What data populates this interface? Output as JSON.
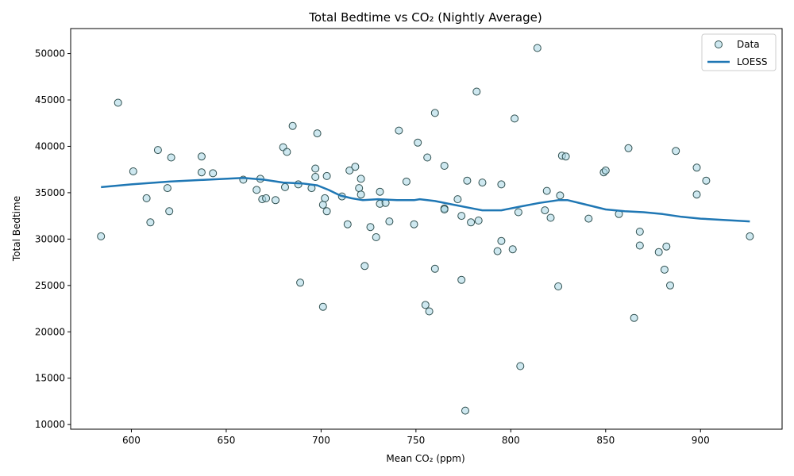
{
  "chart_data": {
    "type": "scatter",
    "title": "Total Bedtime  vs CO₂ (Nightly Average)",
    "xlabel": "Mean CO₂ (ppm)",
    "ylabel": "Total Bedtime",
    "xlim": [
      568,
      943
    ],
    "ylim": [
      9500,
      52700
    ],
    "x_ticks": [
      600,
      650,
      700,
      750,
      800,
      850,
      900
    ],
    "y_ticks": [
      10000,
      15000,
      20000,
      25000,
      30000,
      35000,
      40000,
      45000,
      50000
    ],
    "grid": false,
    "legend_position": "top-right",
    "colors": {
      "marker_fill": "#add8e6",
      "marker_edge": "#2f4f4f",
      "line": "#1f77b4"
    },
    "series": [
      {
        "name": "Data",
        "kind": "scatter",
        "points": [
          [
            584,
            30300
          ],
          [
            593,
            44700
          ],
          [
            601,
            37300
          ],
          [
            608,
            34400
          ],
          [
            610,
            31800
          ],
          [
            614,
            39600
          ],
          [
            619,
            35500
          ],
          [
            620,
            33000
          ],
          [
            621,
            38800
          ],
          [
            637,
            38900
          ],
          [
            637,
            37200
          ],
          [
            643,
            37100
          ],
          [
            659,
            36400
          ],
          [
            666,
            35300
          ],
          [
            668,
            36500
          ],
          [
            669,
            34300
          ],
          [
            671,
            34400
          ],
          [
            676,
            34200
          ],
          [
            680,
            39900
          ],
          [
            681,
            35600
          ],
          [
            682,
            39400
          ],
          [
            685,
            42200
          ],
          [
            688,
            35900
          ],
          [
            689,
            25300
          ],
          [
            695,
            35500
          ],
          [
            697,
            37600
          ],
          [
            697,
            36700
          ],
          [
            698,
            41400
          ],
          [
            701,
            33700
          ],
          [
            701,
            22700
          ],
          [
            702,
            34400
          ],
          [
            703,
            36800
          ],
          [
            703,
            33000
          ],
          [
            711,
            34600
          ],
          [
            714,
            31600
          ],
          [
            715,
            37400
          ],
          [
            718,
            37800
          ],
          [
            720,
            35500
          ],
          [
            721,
            36500
          ],
          [
            721,
            34800
          ],
          [
            723,
            27100
          ],
          [
            726,
            31300
          ],
          [
            729,
            30200
          ],
          [
            731,
            33800
          ],
          [
            731,
            35100
          ],
          [
            734,
            33900
          ],
          [
            736,
            31900
          ],
          [
            741,
            41700
          ],
          [
            745,
            36200
          ],
          [
            749,
            31600
          ],
          [
            751,
            40400
          ],
          [
            755,
            22900
          ],
          [
            756,
            38800
          ],
          [
            757,
            22200
          ],
          [
            760,
            43600
          ],
          [
            760,
            26800
          ],
          [
            765,
            33300
          ],
          [
            765,
            33200
          ],
          [
            765,
            37900
          ],
          [
            772,
            34300
          ],
          [
            774,
            32500
          ],
          [
            774,
            25600
          ],
          [
            776,
            11500
          ],
          [
            777,
            36300
          ],
          [
            779,
            31800
          ],
          [
            782,
            45900
          ],
          [
            783,
            32000
          ],
          [
            785,
            36100
          ],
          [
            793,
            28700
          ],
          [
            795,
            35900
          ],
          [
            795,
            29800
          ],
          [
            801,
            28900
          ],
          [
            802,
            43000
          ],
          [
            804,
            32900
          ],
          [
            805,
            16300
          ],
          [
            814,
            50600
          ],
          [
            818,
            33100
          ],
          [
            819,
            35200
          ],
          [
            821,
            32300
          ],
          [
            825,
            24900
          ],
          [
            826,
            34700
          ],
          [
            827,
            39000
          ],
          [
            829,
            38900
          ],
          [
            841,
            32200
          ],
          [
            849,
            37200
          ],
          [
            850,
            37400
          ],
          [
            857,
            32700
          ],
          [
            862,
            39800
          ],
          [
            865,
            21500
          ],
          [
            868,
            29300
          ],
          [
            868,
            30800
          ],
          [
            878,
            28600
          ],
          [
            881,
            26700
          ],
          [
            882,
            29200
          ],
          [
            884,
            25000
          ],
          [
            887,
            39500
          ],
          [
            898,
            34800
          ],
          [
            898,
            37700
          ],
          [
            903,
            36300
          ],
          [
            926,
            30300
          ]
        ]
      },
      {
        "name": "LOESS",
        "kind": "line",
        "points": [
          [
            584,
            35600
          ],
          [
            600,
            35900
          ],
          [
            620,
            36200
          ],
          [
            640,
            36400
          ],
          [
            659,
            36600
          ],
          [
            670,
            36400
          ],
          [
            680,
            36100
          ],
          [
            690,
            36000
          ],
          [
            698,
            35800
          ],
          [
            704,
            35300
          ],
          [
            710,
            34700
          ],
          [
            716,
            34400
          ],
          [
            722,
            34200
          ],
          [
            730,
            34300
          ],
          [
            740,
            34200
          ],
          [
            749,
            34200
          ],
          [
            752,
            34300
          ],
          [
            760,
            34100
          ],
          [
            770,
            33700
          ],
          [
            780,
            33300
          ],
          [
            785,
            33100
          ],
          [
            795,
            33100
          ],
          [
            805,
            33500
          ],
          [
            815,
            33900
          ],
          [
            825,
            34200
          ],
          [
            830,
            34200
          ],
          [
            840,
            33700
          ],
          [
            850,
            33200
          ],
          [
            860,
            33000
          ],
          [
            870,
            32900
          ],
          [
            880,
            32700
          ],
          [
            890,
            32400
          ],
          [
            900,
            32200
          ],
          [
            926,
            31900
          ]
        ]
      }
    ]
  }
}
